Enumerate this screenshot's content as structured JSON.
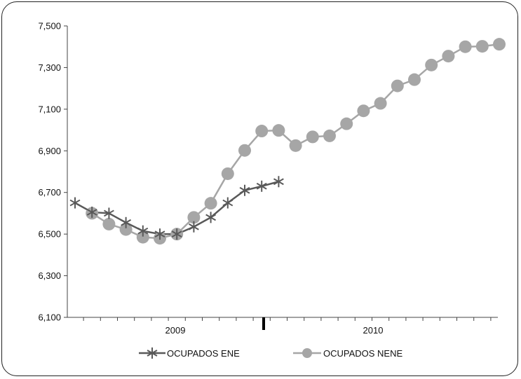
{
  "chart_data": {
    "type": "line",
    "ylim": [
      6100,
      7500
    ],
    "yticks": [
      "6,100",
      "6,300",
      "6,500",
      "6,700",
      "6,900",
      "7,100",
      "7,300",
      "7,500"
    ],
    "ytick_values": [
      6100,
      6300,
      6500,
      6700,
      6900,
      7100,
      7300,
      7500
    ],
    "x_group_labels": [
      "2009",
      "2010"
    ],
    "legend_position": "bottom",
    "grid": false,
    "series": [
      {
        "name": "OCUPADOS ENE",
        "color": "#595959",
        "marker": "star",
        "values": [
          6650,
          6605,
          6600,
          6555,
          6515,
          6500,
          6500,
          6535,
          6580,
          6650,
          6710,
          6730,
          6752
        ]
      },
      {
        "name": "OCUPADOS NENE",
        "color": "#a6a6a6",
        "marker": "circle",
        "values": [
          null,
          6600,
          6548,
          6522,
          6485,
          6480,
          6500,
          6580,
          6648,
          6790,
          6902,
          6995,
          6998,
          6925,
          6967,
          6972,
          7030,
          7092,
          7128,
          7212,
          7242,
          7312,
          7355,
          7400,
          7402,
          7412
        ]
      }
    ]
  }
}
